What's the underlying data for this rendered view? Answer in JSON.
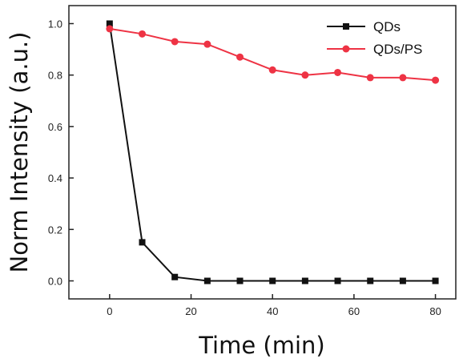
{
  "chart_data": {
    "type": "line",
    "title": "",
    "xlabel": "Time (min)",
    "ylabel": "Norm Intensity (a.u.)",
    "xlim": [
      -10,
      85
    ],
    "ylim": [
      -0.07,
      1.07
    ],
    "x_ticks": [
      0,
      20,
      40,
      60,
      80
    ],
    "y_ticks": [
      0.0,
      0.2,
      0.4,
      0.6,
      0.8,
      1.0
    ],
    "x_tick_labels": [
      "0",
      "20",
      "40",
      "60",
      "80"
    ],
    "y_tick_labels": [
      "0.0",
      "0.2",
      "0.4",
      "0.6",
      "0.8",
      "1.0"
    ],
    "grid": false,
    "legend_position": "top-right",
    "series": [
      {
        "name": "QDs",
        "color": "#111111",
        "marker": "square",
        "x": [
          0,
          8,
          16,
          24,
          32,
          40,
          48,
          56,
          64,
          72,
          80
        ],
        "y": [
          1.0,
          0.15,
          0.015,
          0.0,
          0.0,
          0.0,
          0.0,
          0.0,
          0.0,
          0.0,
          0.0
        ]
      },
      {
        "name": "QDs/PS",
        "color": "#ee3344",
        "marker": "circle",
        "x": [
          0,
          8,
          16,
          24,
          32,
          40,
          48,
          56,
          64,
          72,
          80
        ],
        "y": [
          0.98,
          0.96,
          0.93,
          0.92,
          0.87,
          0.82,
          0.8,
          0.81,
          0.79,
          0.79,
          0.78
        ]
      }
    ]
  }
}
